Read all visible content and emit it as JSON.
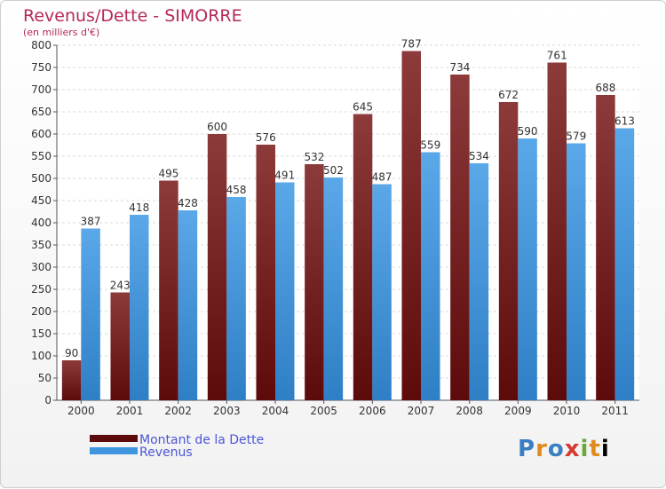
{
  "title": "Revenus/Dette - SIMORRE",
  "subtitle": "(en milliers d'€)",
  "logo": "Proxiti",
  "colors": {
    "debt_top": "#8c3a3a",
    "debt_bottom": "#5c0a0a",
    "revenue_top": "#5aa8e8",
    "revenue_bottom": "#2f7fc6",
    "text_title": "#b5285a",
    "legend_text": "#4a56d6"
  },
  "chart_data": {
    "type": "bar",
    "categories": [
      "2000",
      "2001",
      "2002",
      "2003",
      "2004",
      "2005",
      "2006",
      "2007",
      "2008",
      "2009",
      "2010",
      "2011"
    ],
    "series": [
      {
        "name": "Montant de la Dette",
        "values": [
          90,
          243,
          495,
          600,
          576,
          532,
          645,
          787,
          734,
          672,
          761,
          688
        ]
      },
      {
        "name": "Revenus",
        "values": [
          387,
          418,
          428,
          458,
          491,
          502,
          487,
          559,
          534,
          590,
          579,
          613
        ]
      }
    ],
    "ylim": [
      0,
      800
    ],
    "yticks": [
      0,
      50,
      100,
      150,
      200,
      250,
      300,
      350,
      400,
      450,
      500,
      550,
      600,
      650,
      700,
      750,
      800
    ],
    "grid": true,
    "legend": "bottom-left"
  }
}
